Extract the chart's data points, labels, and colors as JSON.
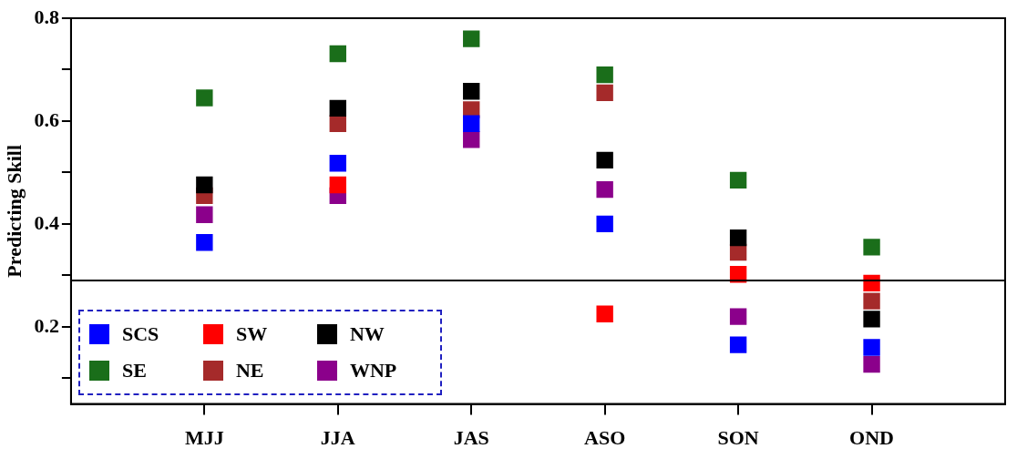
{
  "chart_data": {
    "type": "scatter",
    "ylabel": "Predicting Skill",
    "categories": [
      "MJJ",
      "JJA",
      "JAS",
      "ASO",
      "SON",
      "OND"
    ],
    "ylim": [
      0.05,
      0.8
    ],
    "yticks": [
      {
        "value": 0.1,
        "label": null
      },
      0.2,
      {
        "value": 0.3,
        "label": null
      },
      0.4,
      {
        "value": 0.5,
        "label": null
      },
      0.6,
      {
        "value": 0.7,
        "label": null
      },
      0.8
    ],
    "marker": "square",
    "legend": "bottom left",
    "grid": false,
    "ref_lines": [
      {
        "axis": "y",
        "value": 0.29,
        "color": "#000000"
      }
    ],
    "series": [
      {
        "name": "SCS",
        "color": "#0000ff",
        "values": [
          0.364,
          0.518,
          0.595,
          0.4,
          0.165,
          0.16
        ]
      },
      {
        "name": "SW",
        "color": "#ff0000",
        "values": [
          null,
          0.476,
          null,
          0.225,
          0.302,
          0.285
        ]
      },
      {
        "name": "NW",
        "color": "#000000",
        "values": [
          0.476,
          0.625,
          0.658,
          0.524,
          0.373,
          0.215
        ]
      },
      {
        "name": "SE",
        "color": "#1a6e1a",
        "values": [
          0.645,
          0.731,
          0.76,
          0.69,
          0.485,
          0.355
        ]
      },
      {
        "name": "NE",
        "color": "#a52a2a",
        "values": [
          0.455,
          0.595,
          0.622,
          0.655,
          0.345,
          0.25
        ]
      },
      {
        "name": "WNP",
        "color": "#8b008b",
        "values": [
          0.418,
          0.455,
          0.564,
          0.467,
          0.22,
          0.127
        ]
      }
    ]
  }
}
